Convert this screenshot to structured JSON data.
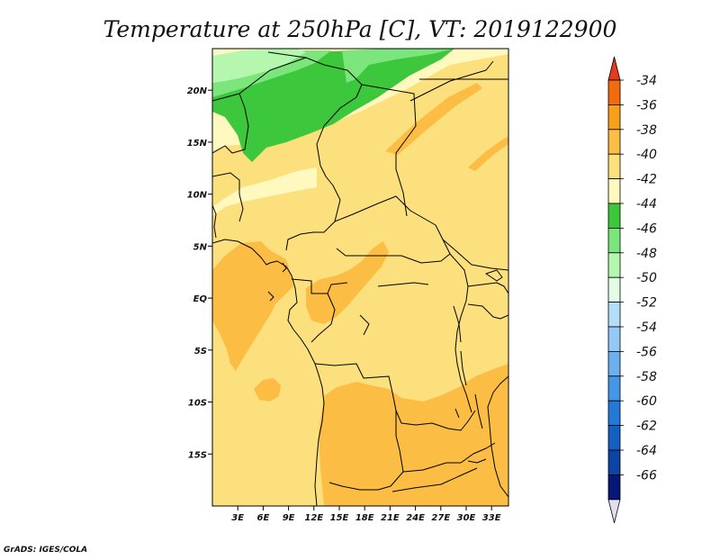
{
  "chart_data": {
    "type": "heatmap",
    "title": "Temperature at 250hPa [C], VT: 2019122900",
    "variable": "Temperature",
    "level": "250hPa",
    "units": "C",
    "valid_time": "2019122900",
    "lon_range": [
      0,
      35
    ],
    "lat_range": [
      -20,
      24
    ],
    "x_ticks": [
      "3E",
      "6E",
      "9E",
      "12E",
      "15E",
      "18E",
      "21E",
      "24E",
      "27E",
      "30E",
      "33E"
    ],
    "x_tick_values": [
      3,
      6,
      9,
      12,
      15,
      18,
      21,
      24,
      27,
      30,
      33
    ],
    "y_ticks": [
      "20N",
      "15N",
      "10N",
      "5N",
      "EQ",
      "5S",
      "10S",
      "15S"
    ],
    "y_tick_values": [
      20,
      15,
      10,
      5,
      0,
      -5,
      -10,
      -15
    ],
    "colorbar": {
      "labels": [
        "-34",
        "-36",
        "-38",
        "-40",
        "-42",
        "-44",
        "-46",
        "-48",
        "-50",
        "-52",
        "-54",
        "-56",
        "-58",
        "-60",
        "-62",
        "-64",
        "-66"
      ],
      "colors": [
        "#e23c1e",
        "#f26b0c",
        "#f7a11a",
        "#fbbd44",
        "#fde07e",
        "#fff8bf",
        "#3dc73d",
        "#7ce57b",
        "#b6f7af",
        "#e2fce7",
        "#b4def7",
        "#95c9f5",
        "#6cb0f0",
        "#4596e6",
        "#2478d8",
        "#135fc2",
        "#0b44a4",
        "#071775",
        "#e2dff2"
      ]
    },
    "regions": [
      {
        "value_range": "-44 to -46",
        "color": "#3dc73d",
        "area": "northern band near 17N-24N"
      },
      {
        "value_range": "-40 to -42",
        "color": "#fde07e",
        "area": "most of domain"
      },
      {
        "value_range": "-38 to -40",
        "color": "#fbbd44",
        "area": "Gulf of Guinea offshore, Congo basin patches, southern Africa"
      }
    ]
  },
  "credit": "GrADS: IGES/COLA"
}
